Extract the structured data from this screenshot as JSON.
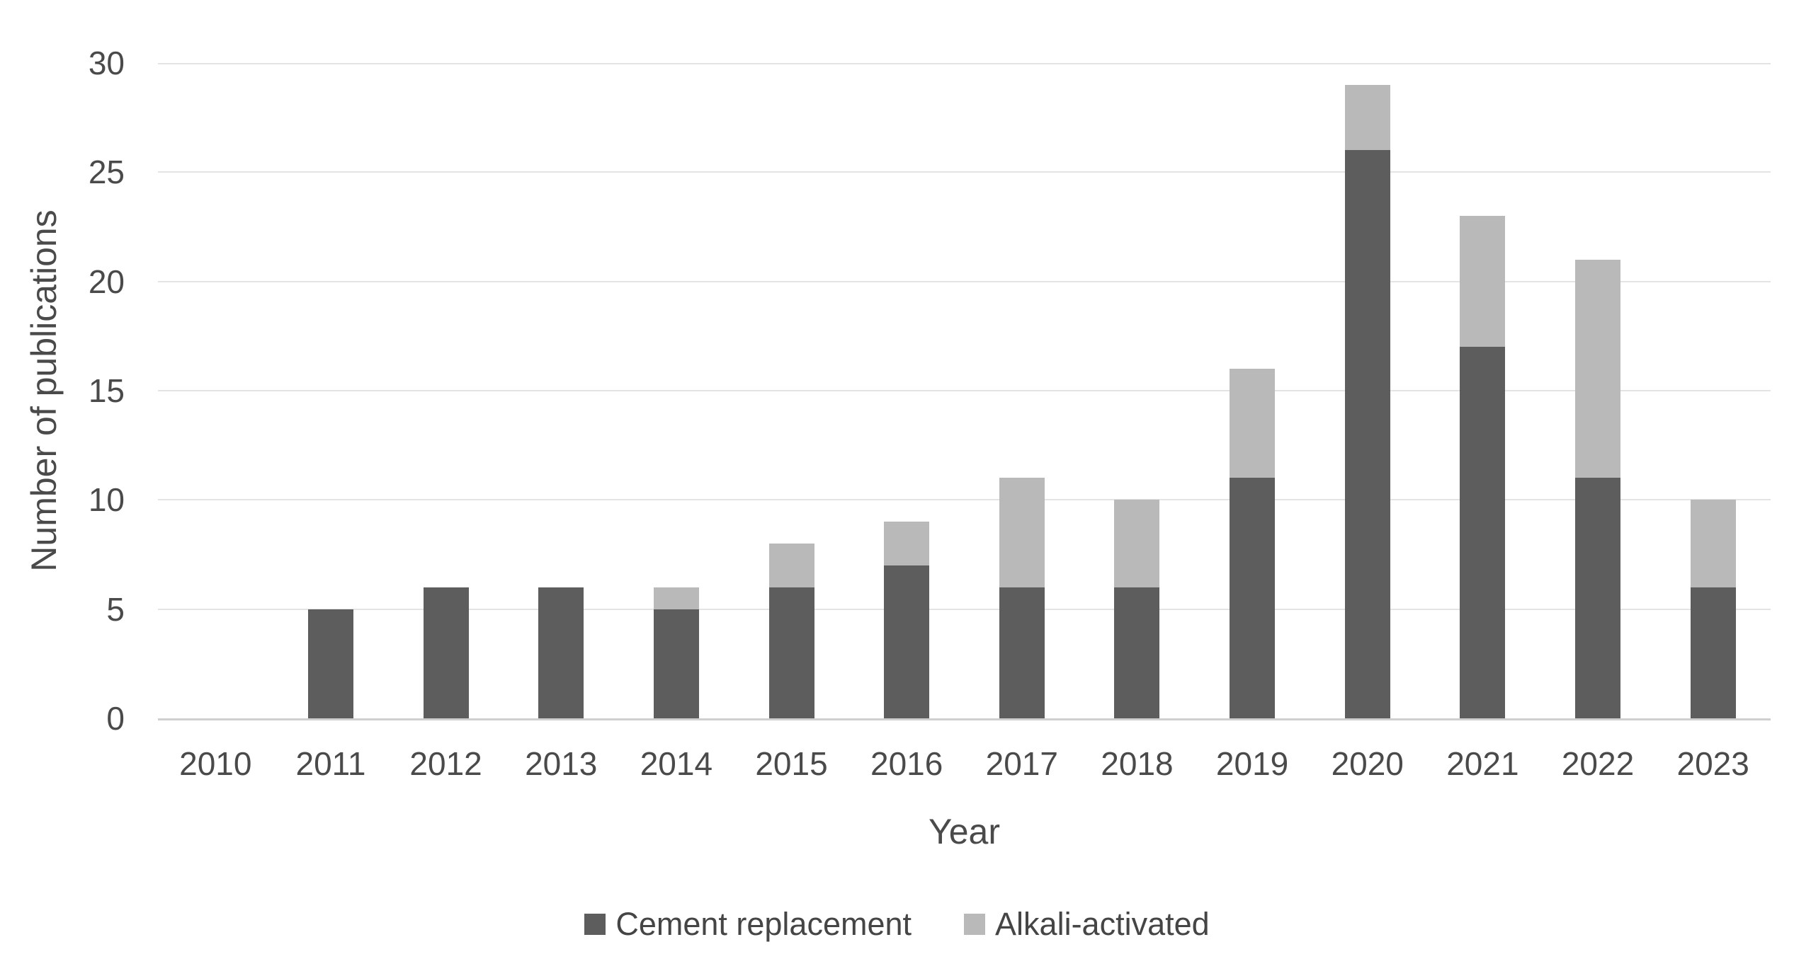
{
  "chart_data": {
    "type": "bar",
    "stacked": true,
    "title": "",
    "xlabel": "Year",
    "ylabel": "Number of publications",
    "categories": [
      "2010",
      "2011",
      "2012",
      "2013",
      "2014",
      "2015",
      "2016",
      "2017",
      "2018",
      "2019",
      "2020",
      "2021",
      "2022",
      "2023"
    ],
    "series": [
      {
        "name": "Cement replacement",
        "color": "#5d5d5d",
        "values": [
          0,
          5,
          6,
          6,
          5,
          6,
          7,
          6,
          6,
          11,
          26,
          17,
          11,
          6
        ]
      },
      {
        "name": "Alkali-activated",
        "color": "#b9b9b9",
        "values": [
          0,
          0,
          0,
          0,
          1,
          2,
          2,
          5,
          4,
          5,
          3,
          6,
          10,
          4
        ]
      }
    ],
    "totals": [
      0,
      5,
      6,
      6,
      6,
      8,
      9,
      11,
      10,
      16,
      29,
      23,
      21,
      10
    ],
    "ylim": [
      0,
      30
    ],
    "yticks": [
      0,
      5,
      10,
      15,
      20,
      25,
      30
    ],
    "grid": "horizontal",
    "legend_position": "bottom",
    "bar_colors": {
      "cement_replacement": "#5d5d5d",
      "alkali_activated": "#b9b9b9"
    }
  }
}
